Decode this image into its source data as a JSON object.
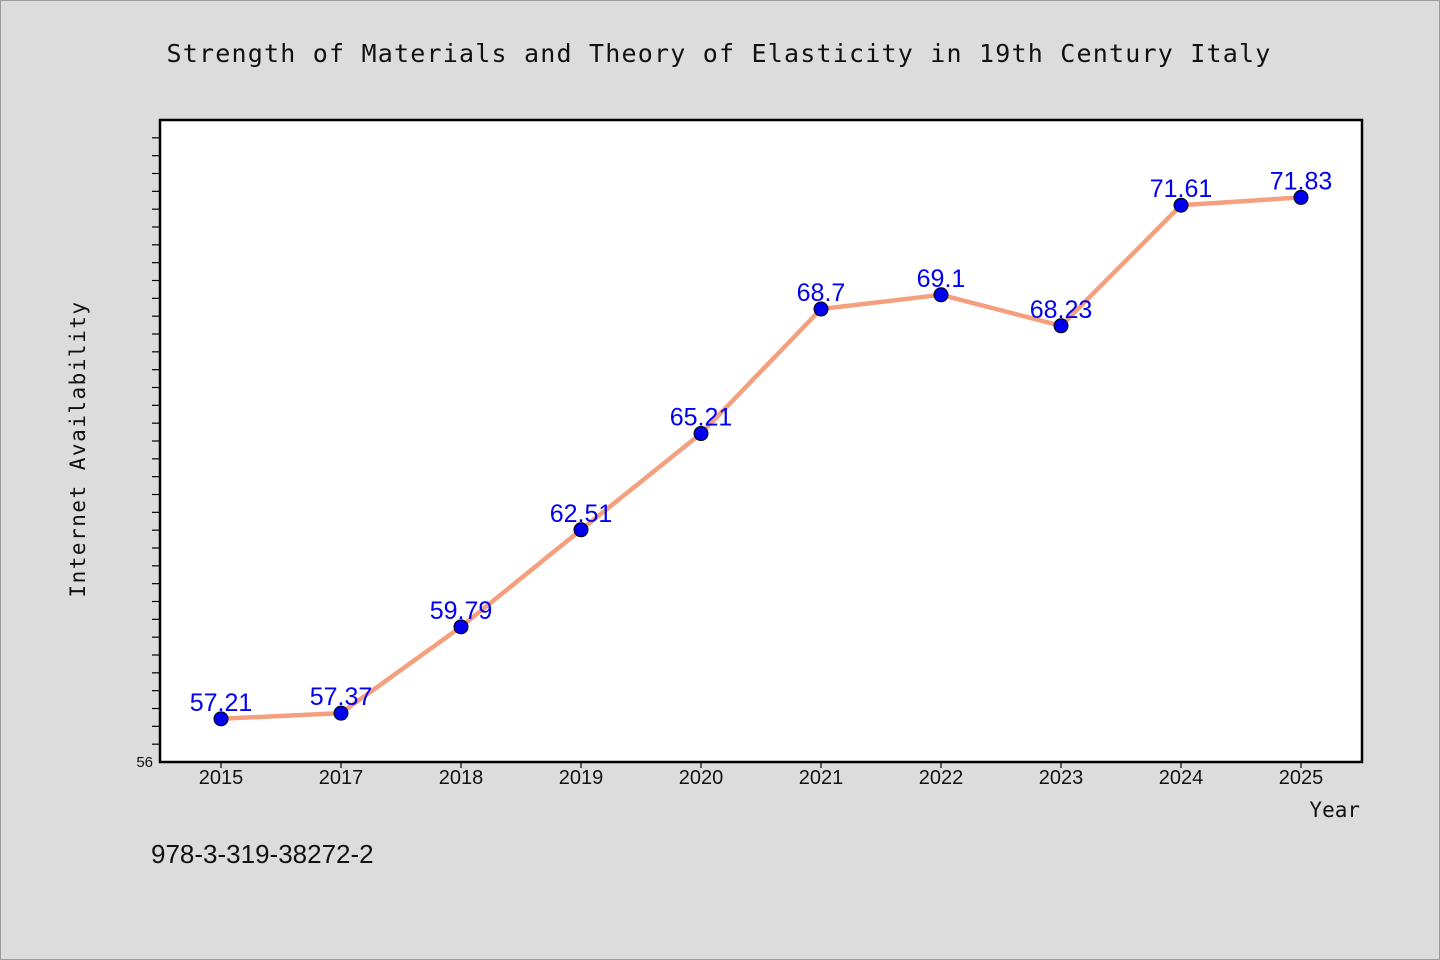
{
  "chart_data": {
    "type": "line",
    "title": "Strength of Materials and Theory of Elasticity in 19th Century Italy",
    "xlabel": "Year",
    "ylabel": "Internet Availability",
    "categories": [
      "2015",
      "2017",
      "2018",
      "2019",
      "2020",
      "2021",
      "2022",
      "2023",
      "2024",
      "2025"
    ],
    "series": [
      {
        "values": [
          57.21,
          57.37,
          59.79,
          62.51,
          65.21,
          68.7,
          69.1,
          68.23,
          71.61,
          71.83
        ],
        "point_labels": [
          "57.21",
          "57.37",
          "59.79",
          "62.51",
          "65.21",
          "68.7",
          "69.1",
          "68.23",
          "71.61",
          "71.83"
        ]
      }
    ],
    "ylim": [
      56,
      74
    ],
    "y_tick_labels": [
      "56"
    ],
    "grid": false,
    "annotation": "978-3-319-38272-2",
    "colors": {
      "line": "#f4a07e",
      "marker": "#0000ee",
      "label": "#0000ee",
      "plot_bg": "#ffffff",
      "page_bg": "#dcdcdc"
    }
  }
}
